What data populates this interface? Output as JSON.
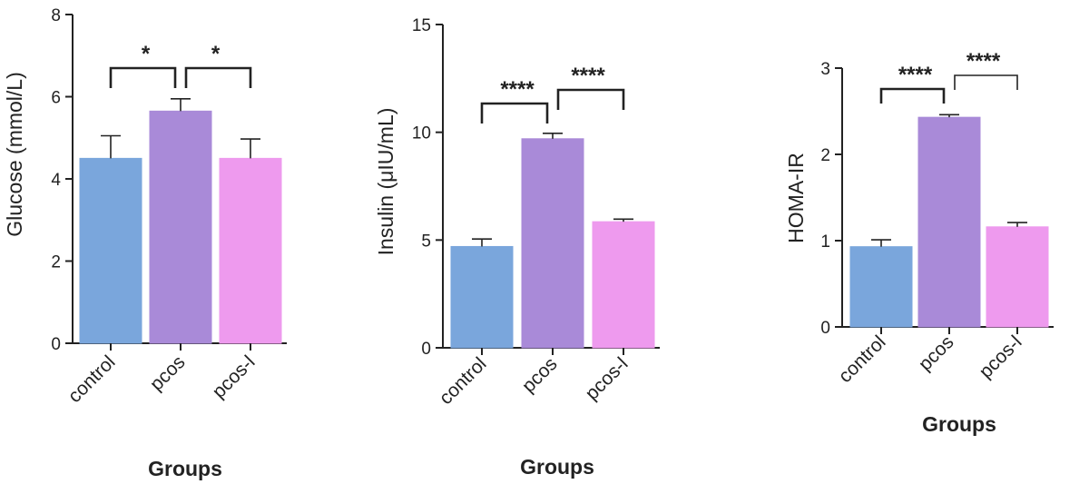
{
  "chart_data": [
    {
      "type": "bar",
      "ylabel": "Glucose (mmol/L)",
      "xlabel": "Groups",
      "categories": [
        "control",
        "pcos",
        "pcos-l"
      ],
      "values": [
        4.5,
        5.65,
        4.5
      ],
      "errors": [
        0.55,
        0.3,
        0.47
      ],
      "colors": [
        "#7aa6dc",
        "#a98ad8",
        "#ee9aee"
      ],
      "ylim": [
        0,
        8
      ],
      "yticks": [
        "0",
        "2",
        "4",
        "6",
        "8"
      ],
      "significance": [
        {
          "from": 0,
          "to": 1,
          "label": "*"
        },
        {
          "from": 1,
          "to": 2,
          "label": "*"
        }
      ]
    },
    {
      "type": "bar",
      "ylabel": "Insulin (μIU/mL)",
      "xlabel": "Groups",
      "categories": [
        "control",
        "pcos",
        "pcos-l"
      ],
      "values": [
        4.7,
        9.7,
        5.85
      ],
      "errors": [
        0.35,
        0.25,
        0.12
      ],
      "colors": [
        "#7aa6dc",
        "#a98ad8",
        "#ee9aee"
      ],
      "ylim": [
        0,
        15
      ],
      "yticks": [
        "0",
        "5",
        "10",
        "15"
      ],
      "significance": [
        {
          "from": 0,
          "to": 1,
          "label": "****"
        },
        {
          "from": 1,
          "to": 2,
          "label": "****"
        }
      ]
    },
    {
      "type": "bar",
      "ylabel": "HOMA-IR",
      "xlabel": "Groups",
      "categories": [
        "control",
        "pcos",
        "pcos-l"
      ],
      "values": [
        0.93,
        2.43,
        1.16
      ],
      "errors": [
        0.08,
        0.03,
        0.05
      ],
      "colors": [
        "#7aa6dc",
        "#a98ad8",
        "#ee9aee"
      ],
      "ylim": [
        0,
        3
      ],
      "yticks": [
        "0",
        "1",
        "2",
        "3"
      ],
      "significance": [
        {
          "from": 0,
          "to": 1,
          "label": "****"
        },
        {
          "from": 1,
          "to": 2,
          "label": "****"
        }
      ]
    }
  ]
}
